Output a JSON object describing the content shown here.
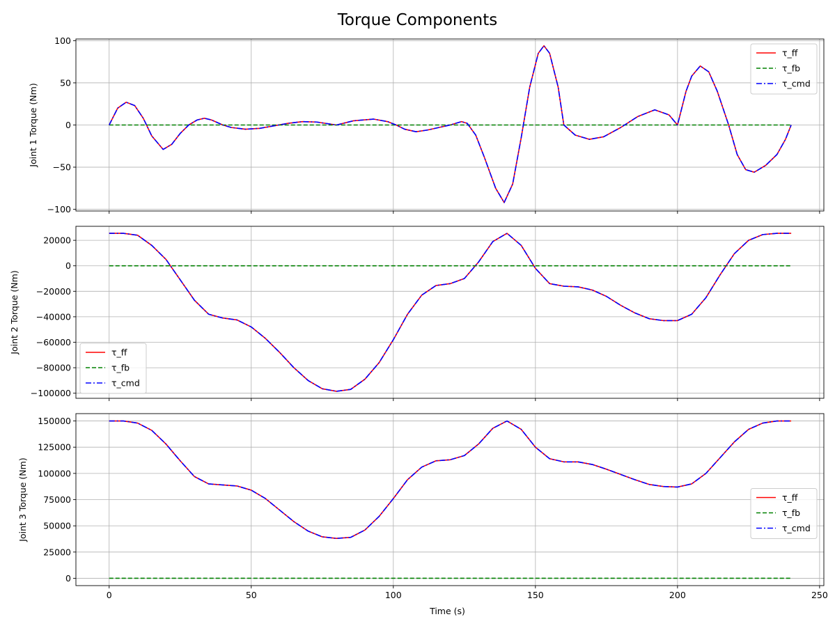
{
  "figure": {
    "suptitle": "Torque Components",
    "shared_xlabel": "Time (s)"
  },
  "colors": {
    "tau_ff": "#ff0000",
    "tau_fb": "#008000",
    "tau_cmd": "#0000ff",
    "grid": "#b0b0b0",
    "axes": "#000000"
  },
  "chart_data": [
    {
      "type": "line",
      "ylabel": "Joint 1 Torque (Nm)",
      "xlabel": "",
      "xlim": [
        -11.7,
        251.5
      ],
      "ylim": [
        -102,
        102
      ],
      "xticks": [
        0,
        50,
        100,
        150,
        200,
        250
      ],
      "yticks": [
        -100,
        -50,
        0,
        50,
        100
      ],
      "ytick_labels": [
        "−100",
        "−50",
        "0",
        "50",
        "100"
      ],
      "grid": true,
      "legend": {
        "position": "upper-right",
        "entries": [
          "τ_ff",
          "τ_fb",
          "τ_cmd"
        ]
      },
      "series": [
        {
          "name": "τ_ff",
          "style": "solid",
          "points": [
            [
              0,
              0
            ],
            [
              3,
              20
            ],
            [
              6,
              27
            ],
            [
              9,
              23
            ],
            [
              12,
              8
            ],
            [
              15,
              -13
            ],
            [
              19,
              -29
            ],
            [
              22,
              -23
            ],
            [
              25,
              -10
            ],
            [
              28,
              0
            ],
            [
              31,
              6
            ],
            [
              33.5,
              8
            ],
            [
              36,
              6
            ],
            [
              40,
              0
            ],
            [
              43,
              -3
            ],
            [
              48,
              -5
            ],
            [
              53,
              -4
            ],
            [
              58,
              -1
            ],
            [
              63,
              2
            ],
            [
              68,
              4
            ],
            [
              73,
              3.5
            ],
            [
              80,
              0
            ],
            [
              86,
              5
            ],
            [
              93,
              7
            ],
            [
              98,
              4
            ],
            [
              101,
              0
            ],
            [
              104,
              -5
            ],
            [
              108,
              -8
            ],
            [
              112,
              -6
            ],
            [
              116,
              -3
            ],
            [
              120,
              0
            ],
            [
              124,
              4
            ],
            [
              126,
              2
            ],
            [
              129,
              -12
            ],
            [
              132,
              -38
            ],
            [
              136,
              -75
            ],
            [
              139,
              -92
            ],
            [
              142,
              -70
            ],
            [
              145,
              -15
            ],
            [
              148,
              45
            ],
            [
              151,
              85
            ],
            [
              153,
              94
            ],
            [
              155,
              85
            ],
            [
              158,
              45
            ],
            [
              160,
              0
            ],
            [
              164,
              -12
            ],
            [
              169,
              -17
            ],
            [
              174,
              -14
            ],
            [
              180,
              -3
            ],
            [
              186,
              10
            ],
            [
              192,
              18
            ],
            [
              197,
              12
            ],
            [
              200,
              0
            ],
            [
              203,
              40
            ],
            [
              205,
              58
            ],
            [
              208,
              70
            ],
            [
              211,
              63
            ],
            [
              214,
              40
            ],
            [
              218,
              0
            ],
            [
              221,
              -35
            ],
            [
              224,
              -53
            ],
            [
              227,
              -56
            ],
            [
              231,
              -48
            ],
            [
              235,
              -35
            ],
            [
              238,
              -17
            ],
            [
              240,
              0
            ]
          ]
        },
        {
          "name": "τ_fb",
          "style": "dashed",
          "points": [
            [
              0,
              0
            ],
            [
              240,
              0
            ]
          ]
        },
        {
          "name": "τ_cmd",
          "style": "dashdot",
          "same_as": "τ_ff"
        }
      ]
    },
    {
      "type": "line",
      "ylabel": "Joint 2 Torque (Nm)",
      "xlabel": "",
      "xlim": [
        -11.7,
        251.5
      ],
      "ylim": [
        -104000,
        31000
      ],
      "xticks": [
        0,
        50,
        100,
        150,
        200,
        250
      ],
      "yticks": [
        -100000,
        -80000,
        -60000,
        -40000,
        -20000,
        0,
        20000
      ],
      "ytick_labels": [
        "−100000",
        "−80000",
        "−60000",
        "−40000",
        "−20000",
        "0",
        "20000"
      ],
      "grid": true,
      "legend": {
        "position": "lower-left",
        "entries": [
          "τ_ff",
          "τ_fb",
          "τ_cmd"
        ]
      },
      "series": [
        {
          "name": "τ_ff",
          "style": "solid",
          "points": [
            [
              0,
              25500
            ],
            [
              5,
              25500
            ],
            [
              10,
              24000
            ],
            [
              15,
              16000
            ],
            [
              20,
              5000
            ],
            [
              25,
              -11000
            ],
            [
              30,
              -27000
            ],
            [
              35,
              -38000
            ],
            [
              40,
              -41000
            ],
            [
              45,
              -42500
            ],
            [
              50,
              -48000
            ],
            [
              55,
              -57000
            ],
            [
              60,
              -68000
            ],
            [
              65,
              -80000
            ],
            [
              70,
              -90000
            ],
            [
              75,
              -96500
            ],
            [
              80,
              -98500
            ],
            [
              85,
              -97000
            ],
            [
              90,
              -89000
            ],
            [
              95,
              -76000
            ],
            [
              100,
              -58000
            ],
            [
              105,
              -38000
            ],
            [
              110,
              -23000
            ],
            [
              115,
              -15500
            ],
            [
              120,
              -14000
            ],
            [
              125,
              -10000
            ],
            [
              130,
              3000
            ],
            [
              135,
              19000
            ],
            [
              140,
              25500
            ],
            [
              145,
              16000
            ],
            [
              150,
              -2000
            ],
            [
              155,
              -14000
            ],
            [
              160,
              -16000
            ],
            [
              165,
              -16500
            ],
            [
              170,
              -19000
            ],
            [
              175,
              -24000
            ],
            [
              180,
              -31000
            ],
            [
              185,
              -37000
            ],
            [
              190,
              -41500
            ],
            [
              195,
              -43000
            ],
            [
              200,
              -43000
            ],
            [
              205,
              -38000
            ],
            [
              210,
              -25000
            ],
            [
              215,
              -7000
            ],
            [
              220,
              9500
            ],
            [
              225,
              20000
            ],
            [
              230,
              24500
            ],
            [
              235,
              25500
            ],
            [
              240,
              25500
            ]
          ]
        },
        {
          "name": "τ_fb",
          "style": "dashed",
          "points": [
            [
              0,
              0
            ],
            [
              240,
              0
            ]
          ]
        },
        {
          "name": "τ_cmd",
          "style": "dashdot",
          "same_as": "τ_ff"
        }
      ]
    },
    {
      "type": "line",
      "ylabel": "Joint 3 Torque (Nm)",
      "xlabel": "Time (s)",
      "xlim": [
        -11.7,
        251.5
      ],
      "ylim": [
        -7000,
        157000
      ],
      "xticks": [
        0,
        50,
        100,
        150,
        200,
        250
      ],
      "yticks": [
        0,
        25000,
        50000,
        75000,
        100000,
        125000,
        150000
      ],
      "ytick_labels": [
        "0",
        "25000",
        "50000",
        "75000",
        "100000",
        "125000",
        "150000"
      ],
      "grid": true,
      "legend": {
        "position": "center-right",
        "entries": [
          "τ_ff",
          "τ_fb",
          "τ_cmd"
        ]
      },
      "series": [
        {
          "name": "τ_ff",
          "style": "solid",
          "points": [
            [
              0,
              150000
            ],
            [
              5,
              150000
            ],
            [
              10,
              148000
            ],
            [
              15,
              141000
            ],
            [
              20,
              128000
            ],
            [
              25,
              112000
            ],
            [
              30,
              97000
            ],
            [
              35,
              90000
            ],
            [
              40,
              89000
            ],
            [
              45,
              88000
            ],
            [
              50,
              84000
            ],
            [
              55,
              76000
            ],
            [
              60,
              65000
            ],
            [
              65,
              54000
            ],
            [
              70,
              45000
            ],
            [
              75,
              39500
            ],
            [
              80,
              38000
            ],
            [
              85,
              39000
            ],
            [
              90,
              46000
            ],
            [
              95,
              59000
            ],
            [
              100,
              76000
            ],
            [
              105,
              94000
            ],
            [
              110,
              106000
            ],
            [
              115,
              112000
            ],
            [
              120,
              113000
            ],
            [
              125,
              117000
            ],
            [
              130,
              128000
            ],
            [
              135,
              143000
            ],
            [
              140,
              150000
            ],
            [
              145,
              142000
            ],
            [
              150,
              125000
            ],
            [
              155,
              114000
            ],
            [
              160,
              111000
            ],
            [
              165,
              111000
            ],
            [
              170,
              108500
            ],
            [
              175,
              104000
            ],
            [
              180,
              99000
            ],
            [
              185,
              94000
            ],
            [
              190,
              89500
            ],
            [
              195,
              87500
            ],
            [
              200,
              87000
            ],
            [
              205,
              90000
            ],
            [
              210,
              100000
            ],
            [
              215,
              115000
            ],
            [
              220,
              130000
            ],
            [
              225,
              142000
            ],
            [
              230,
              148000
            ],
            [
              235,
              150000
            ],
            [
              240,
              150000
            ]
          ]
        },
        {
          "name": "τ_fb",
          "style": "dashed",
          "points": [
            [
              0,
              0
            ],
            [
              240,
              0
            ]
          ]
        },
        {
          "name": "τ_cmd",
          "style": "dashdot",
          "same_as": "τ_ff"
        }
      ]
    }
  ]
}
